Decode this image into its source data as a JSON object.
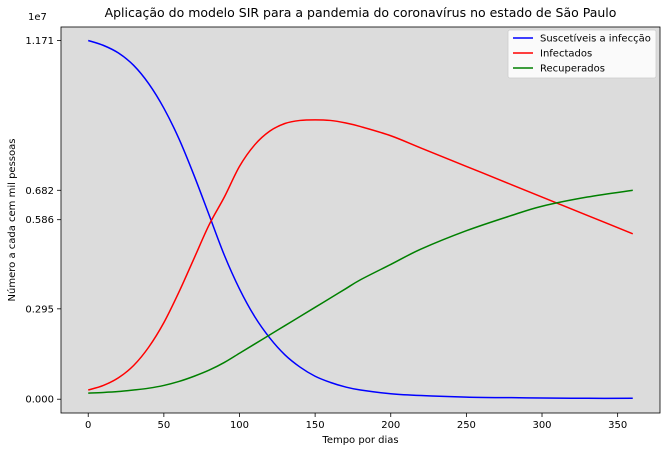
{
  "chart_data": {
    "type": "line",
    "title": "Aplicação do modelo SIR para a pandemia do coronavírus no estado de São Paulo",
    "xlabel": "Tempo por dias",
    "ylabel": "Número a cada cem mil pessoas",
    "y_offset_label": "1e7",
    "xlim": [
      -18,
      378
    ],
    "ylim": [
      -0.045,
      1.215
    ],
    "x_ticks": [
      0,
      50,
      100,
      150,
      200,
      250,
      300,
      350
    ],
    "x_tick_labels": [
      "0",
      "50",
      "100",
      "150",
      "200",
      "250",
      "300",
      "350"
    ],
    "y_ticks": [
      0.0,
      0.295,
      0.586,
      0.682,
      1.171
    ],
    "y_tick_labels": [
      "0.000",
      "0.295",
      "0.586",
      "0.682",
      "1.171"
    ],
    "grid": false,
    "legend_position": "top-right",
    "background": "#dcdcdc",
    "series": [
      {
        "name": "Suscetíveis a infecção",
        "color": "#0000ff",
        "x": [
          0,
          10,
          20,
          30,
          40,
          50,
          60,
          70,
          80,
          90,
          100,
          110,
          120,
          130,
          140,
          150,
          160,
          170,
          180,
          200,
          220,
          250,
          280,
          300,
          330,
          360
        ],
        "y": [
          1.171,
          1.155,
          1.13,
          1.09,
          1.03,
          0.95,
          0.85,
          0.73,
          0.6,
          0.47,
          0.36,
          0.27,
          0.2,
          0.145,
          0.105,
          0.075,
          0.055,
          0.04,
          0.03,
          0.018,
          0.012,
          0.007,
          0.005,
          0.004,
          0.003,
          0.003
        ]
      },
      {
        "name": "Infectados",
        "color": "#ff0000",
        "x": [
          0,
          10,
          20,
          30,
          40,
          50,
          60,
          70,
          80,
          90,
          100,
          110,
          120,
          130,
          140,
          150,
          160,
          170,
          180,
          200,
          220,
          250,
          280,
          300,
          330,
          360
        ],
        "y": [
          0.03,
          0.045,
          0.07,
          0.11,
          0.17,
          0.25,
          0.35,
          0.46,
          0.57,
          0.66,
          0.76,
          0.83,
          0.875,
          0.9,
          0.91,
          0.912,
          0.91,
          0.902,
          0.89,
          0.86,
          0.82,
          0.76,
          0.7,
          0.66,
          0.6,
          0.54
        ]
      },
      {
        "name": "Recuperados",
        "color": "#008000",
        "x": [
          0,
          10,
          20,
          30,
          40,
          50,
          60,
          70,
          80,
          90,
          100,
          110,
          120,
          130,
          140,
          150,
          160,
          170,
          180,
          200,
          220,
          250,
          280,
          300,
          330,
          360
        ],
        "y": [
          0.02,
          0.022,
          0.025,
          0.03,
          0.036,
          0.045,
          0.058,
          0.075,
          0.095,
          0.12,
          0.15,
          0.18,
          0.21,
          0.24,
          0.27,
          0.3,
          0.33,
          0.36,
          0.39,
          0.44,
          0.49,
          0.55,
          0.6,
          0.63,
          0.66,
          0.682
        ]
      }
    ]
  }
}
